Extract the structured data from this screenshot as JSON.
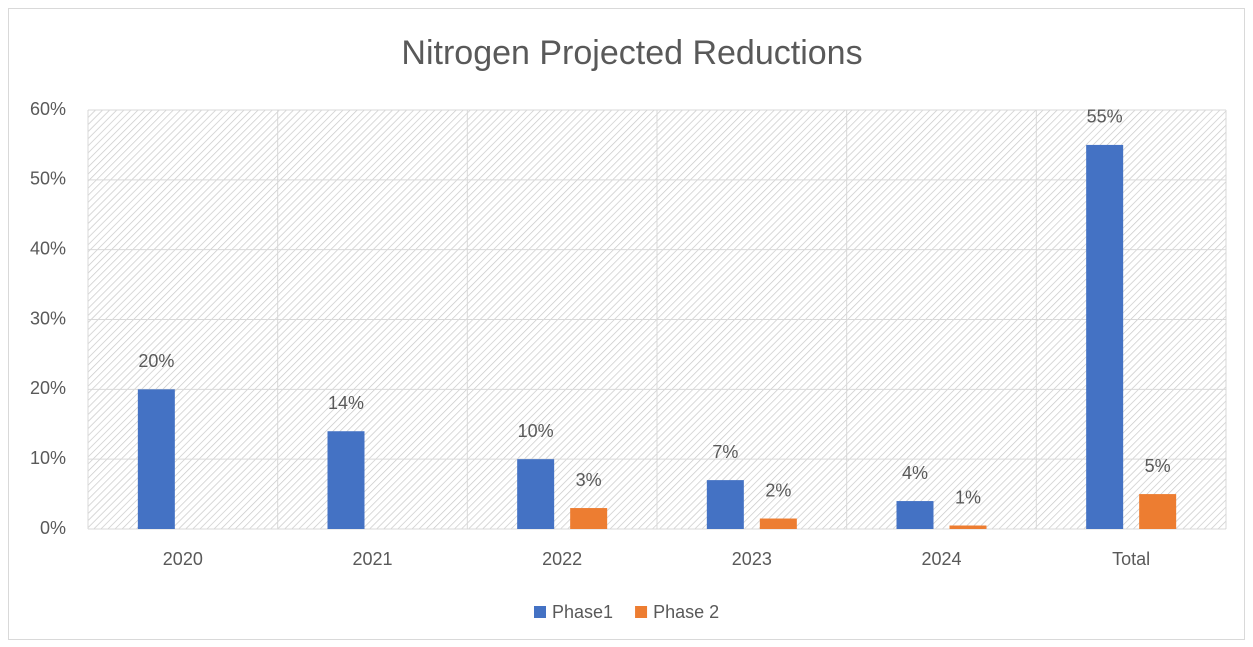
{
  "chart_data": {
    "type": "bar",
    "title": "Nitrogen Projected Reductions",
    "categories": [
      "2020",
      "2021",
      "2022",
      "2023",
      "2024",
      "Total"
    ],
    "series": [
      {
        "name": "Phase1",
        "color": "#4472c4",
        "values": [
          20,
          14,
          10,
          7,
          4,
          55
        ],
        "value_labels": [
          "20%",
          "14%",
          "10%",
          "7%",
          "4%",
          "55%"
        ]
      },
      {
        "name": "Phase 2",
        "color": "#ed7d31",
        "values": [
          null,
          null,
          3,
          1.5,
          0.5,
          5
        ],
        "value_labels": [
          null,
          null,
          "3%",
          "2%",
          "1%",
          "5%"
        ]
      }
    ],
    "ylim": [
      0,
      60
    ],
    "yticks": [
      {
        "value": 0,
        "label": "0%"
      },
      {
        "value": 10,
        "label": "10%"
      },
      {
        "value": 20,
        "label": "20%"
      },
      {
        "value": 30,
        "label": "30%"
      },
      {
        "value": 40,
        "label": "40%"
      },
      {
        "value": 50,
        "label": "50%"
      },
      {
        "value": 60,
        "label": "60%"
      }
    ],
    "grid": true,
    "legend": "bottom"
  }
}
